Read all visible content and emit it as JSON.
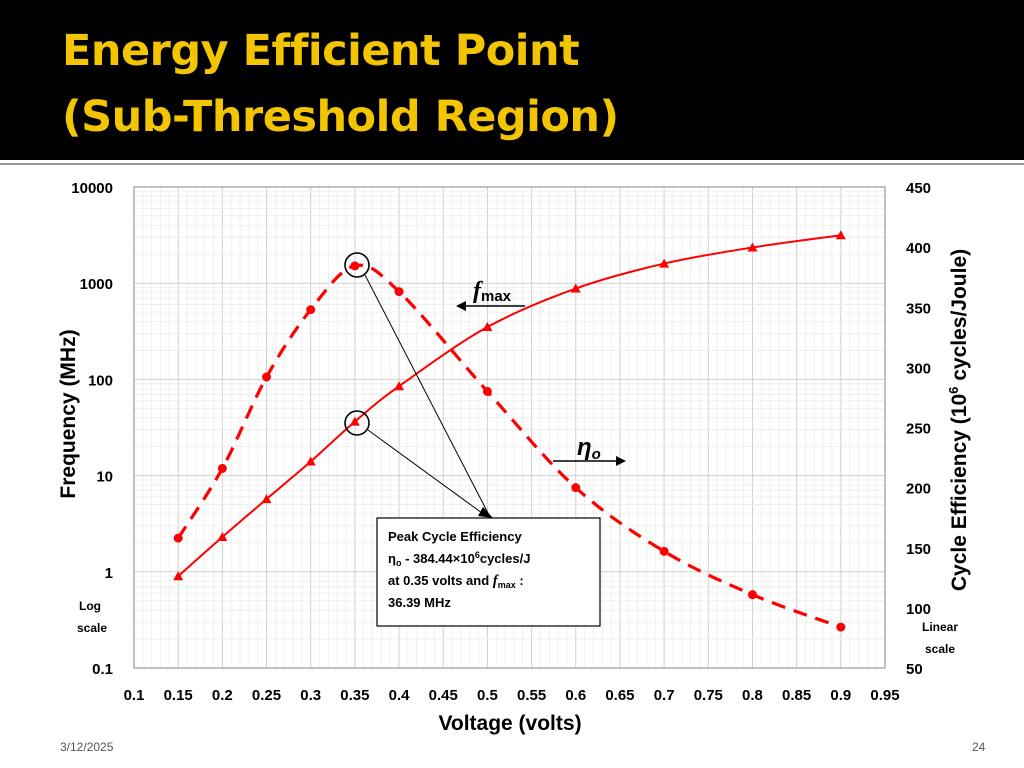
{
  "slide": {
    "title_line1": "Energy Efficient Point",
    "title_line2": "(Sub-Threshold Region)",
    "footer_date": "3/12/2025",
    "page_number": "24",
    "title_color": "#f2c500"
  },
  "chart_data": {
    "type": "line",
    "x_axis": {
      "label": "Voltage (volts)",
      "range": [
        0.1,
        0.95
      ],
      "ticks": [
        "0.1",
        "0.15",
        "0.2",
        "0.25",
        "0.3",
        "0.35",
        "0.4",
        "0.45",
        "0.5",
        "0.55",
        "0.6",
        "0.65",
        "0.7",
        "0.75",
        "0.8",
        "0.85",
        "0.9",
        "0.95"
      ]
    },
    "y_left": {
      "label": "Frequency (MHz)",
      "scale": "log",
      "range": [
        0.1,
        10000
      ],
      "ticks": [
        "0.1",
        "1",
        "10",
        "100",
        "1000",
        "10000"
      ],
      "note": [
        "Log",
        "scale"
      ]
    },
    "y_right": {
      "label_main": "Cycle Efficiency (10",
      "label_sup": "6",
      "label_rest": " cycles/Joule)",
      "scale": "linear",
      "range": [
        50,
        450
      ],
      "ticks": [
        "50",
        "100",
        "150",
        "200",
        "250",
        "300",
        "350",
        "400",
        "450"
      ],
      "note": [
        "Linear",
        "scale"
      ]
    },
    "series": [
      {
        "name": "fmax",
        "axis": "left",
        "style": "solid",
        "marker": "triangle",
        "color": "#ff0000",
        "x": [
          0.15,
          0.2,
          0.25,
          0.3,
          0.35,
          0.4,
          0.5,
          0.6,
          0.7,
          0.8,
          0.9
        ],
        "y": [
          0.9,
          2.3,
          5.7,
          14,
          36.39,
          85,
          350,
          880,
          1600,
          2350,
          3150
        ]
      },
      {
        "name": "eta_o",
        "axis": "right",
        "style": "dashed",
        "marker": "circle",
        "color": "#ff0000",
        "x": [
          0.15,
          0.2,
          0.25,
          0.3,
          0.35,
          0.4,
          0.5,
          0.6,
          0.7,
          0.8,
          0.9
        ],
        "y": [
          158,
          216,
          292,
          348,
          384.44,
          363,
          280,
          200,
          147,
          111,
          84
        ]
      }
    ],
    "series_labels": {
      "fmax_main": "f",
      "fmax_sub": "max",
      "eta_main": "η",
      "eta_sub": "o"
    },
    "annotation": {
      "line1": "Peak Cycle Efficiency",
      "line2_a": "η",
      "line2_sub": "o",
      "line2_b": " - 384.44×10",
      "line2_sup": "6",
      "line2_c": "cycles/J",
      "line3_a": "at 0.35 volts and ",
      "line3_f": "f",
      "line3_sub": "max",
      "line3_c": " :",
      "line4": "36.39 MHz"
    }
  }
}
